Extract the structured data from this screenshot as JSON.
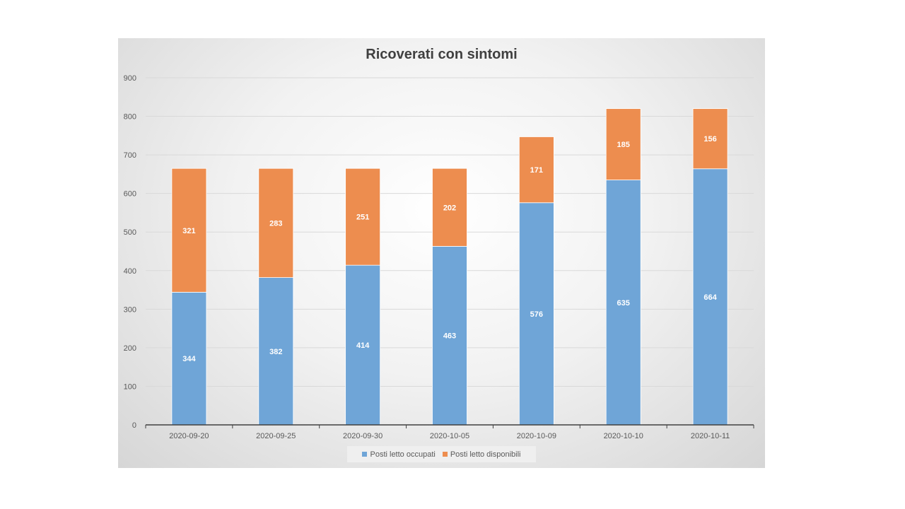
{
  "colors": {
    "occupied": "#6fa5d7",
    "available": "#ed8d4f",
    "gridline": "#d9d9d9",
    "axis": "#404040",
    "tick_text": "#595959"
  },
  "chart_data": {
    "type": "bar",
    "stacked": true,
    "title": "Ricoverati con sintomi",
    "xlabel": "",
    "ylabel": "",
    "ylim": [
      0,
      900
    ],
    "yticks": [
      0,
      100,
      200,
      300,
      400,
      500,
      600,
      700,
      800,
      900
    ],
    "categories": [
      "2020-09-20",
      "2020-09-25",
      "2020-09-30",
      "2020-10-05",
      "2020-10-09",
      "2020-10-10",
      "2020-10-11"
    ],
    "series": [
      {
        "name": "Posti letto occupati",
        "values": [
          344,
          382,
          414,
          463,
          576,
          635,
          664
        ]
      },
      {
        "name": "Posti letto disponibili",
        "values": [
          321,
          283,
          251,
          202,
          171,
          185,
          156
        ]
      }
    ],
    "legend": {
      "position": "bottom"
    }
  }
}
